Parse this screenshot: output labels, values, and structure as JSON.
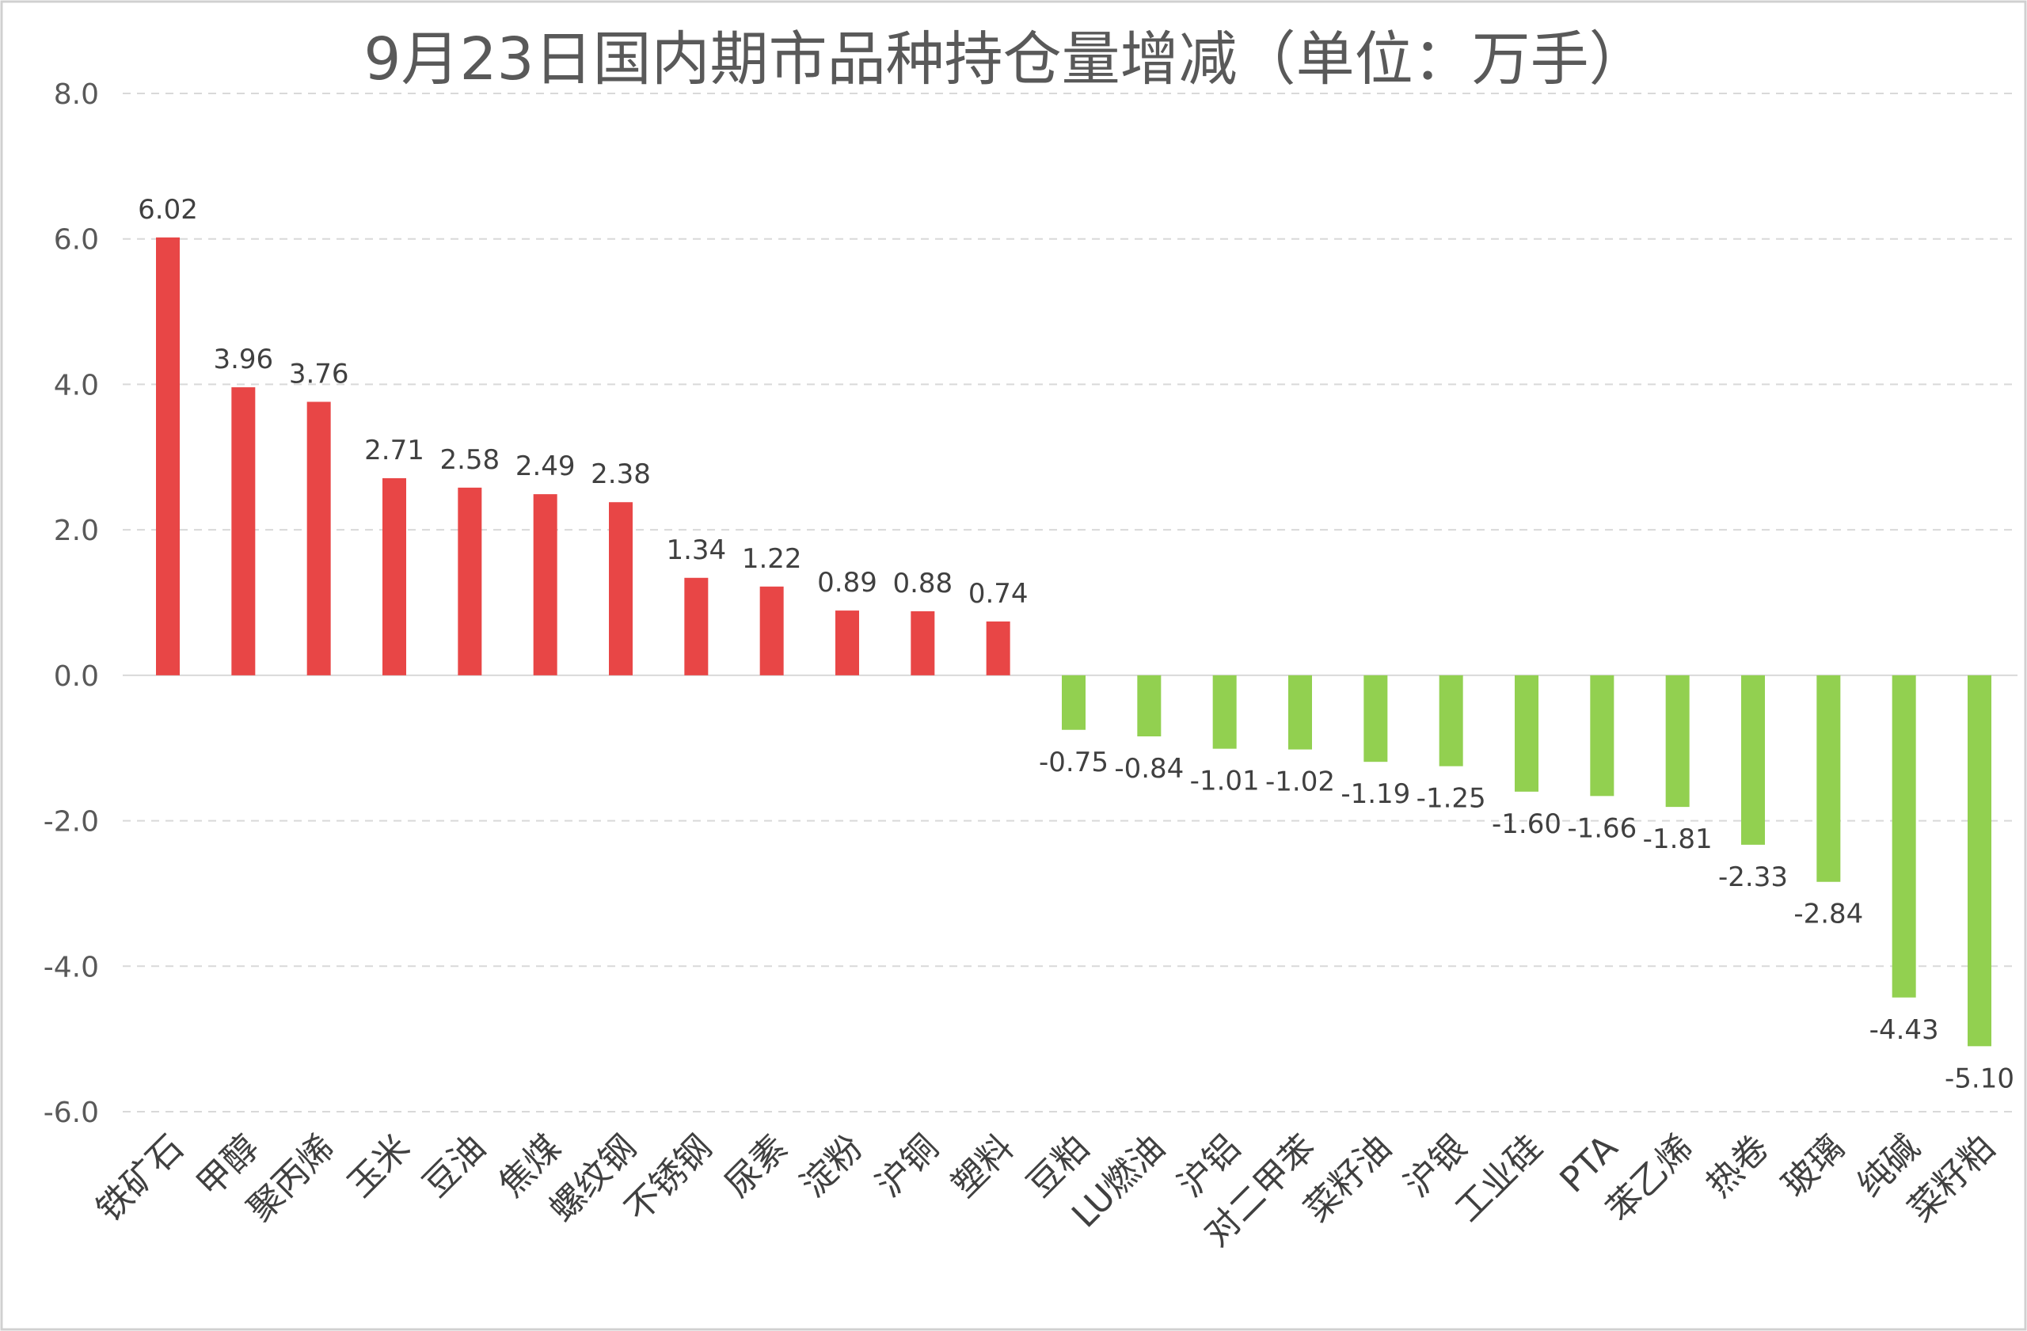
{
  "chart_data": {
    "type": "bar",
    "title": "9月23日国内期市品种持仓量增减（单位：万手）",
    "xlabel": "",
    "ylabel": "",
    "ylim": [
      -6,
      8
    ],
    "yticks": [
      "8.0",
      "6.0",
      "4.0",
      "2.0",
      "0.0",
      "-2.0",
      "-4.0",
      "-6.0"
    ],
    "ytick_values": [
      8,
      6,
      4,
      2,
      0,
      -2,
      -4,
      -6
    ],
    "grid": true,
    "positive_color": "#e84646",
    "negative_color": "#92d050",
    "categories": [
      "铁矿石",
      "甲醇",
      "聚丙烯",
      "玉米",
      "豆油",
      "焦煤",
      "螺纹钢",
      "不锈钢",
      "尿素",
      "淀粉",
      "沪铜",
      "塑料",
      "豆粕",
      "LU燃油",
      "沪铝",
      "对二甲苯",
      "菜籽油",
      "沪银",
      "工业硅",
      "PTA",
      "苯乙烯",
      "热卷",
      "玻璃",
      "纯碱",
      "菜籽粕"
    ],
    "values": [
      6.02,
      3.96,
      3.76,
      2.71,
      2.58,
      2.49,
      2.38,
      1.34,
      1.22,
      0.89,
      0.88,
      0.74,
      -0.75,
      -0.84,
      -1.01,
      -1.02,
      -1.19,
      -1.25,
      -1.6,
      -1.66,
      -1.81,
      -2.33,
      -2.84,
      -4.43,
      -5.1
    ],
    "labels": [
      "6.02",
      "3.96",
      "3.76",
      "2.71",
      "2.58",
      "2.49",
      "2.38",
      "1.34",
      "1.22",
      "0.89",
      "0.88",
      "0.74",
      "-0.75",
      "-0.84",
      "-1.01",
      "-1.02",
      "-1.19",
      "-1.25",
      "-1.60",
      "-1.66",
      "-1.81",
      "-2.33",
      "-2.84",
      "-4.43",
      "-5.10"
    ]
  }
}
